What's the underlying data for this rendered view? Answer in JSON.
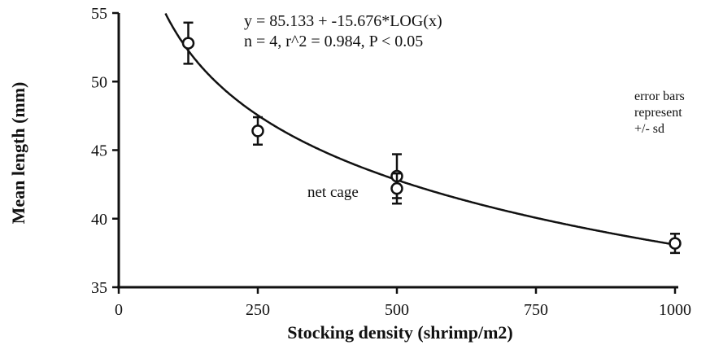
{
  "chart_data": {
    "type": "scatter",
    "title": "",
    "xlabel": "Stocking density (shrimp/m2)",
    "ylabel": "Mean length (mm)",
    "xlim": [
      0,
      1000
    ],
    "ylim": [
      35,
      55
    ],
    "x_ticks": [
      "0",
      "250",
      "500",
      "750",
      "1000"
    ],
    "y_ticks": [
      "35",
      "40",
      "45",
      "50",
      "55"
    ],
    "points": [
      {
        "x": 125,
        "y": 52.8,
        "sd": 1.5
      },
      {
        "x": 250,
        "y": 46.4,
        "sd": 1.0
      },
      {
        "x": 500,
        "y": 43.1,
        "sd": 1.6
      },
      {
        "x": 500,
        "y": 42.2,
        "sd": 1.1
      },
      {
        "x": 1000,
        "y": 38.2,
        "sd": 0.7
      }
    ],
    "fit": {
      "type": "log10",
      "intercept": 85.133,
      "slope": -15.676
    },
    "equation_line1": "y = 85.133 + -15.676*LOG(x)",
    "equation_line2": "n = 4, r^2 = 0.984, P < 0.05",
    "annotation": "net cage",
    "note_lines": [
      "error bars",
      "represent",
      "+/- sd"
    ]
  }
}
